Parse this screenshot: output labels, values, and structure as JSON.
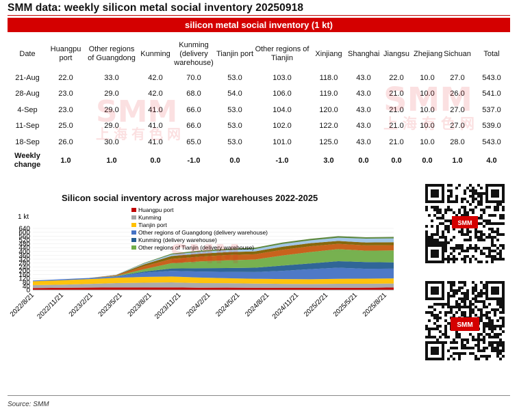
{
  "header": {
    "title": "SMM data:  weekly silicon metal social inventory 20250918"
  },
  "table": {
    "banner": "silicon metal social inventory (1 kt)",
    "columns": [
      "Date",
      "Huangpu port",
      "Other regions of Guangdong",
      "Kunming",
      "Kunming (delivery warehouse)",
      "Tianjin port",
      "Other regions of Tianjin",
      "Xinjiang",
      "Shanghai",
      "Jiangsu",
      "Zhejiang",
      "Sichuan",
      "Total"
    ],
    "rows": [
      [
        "21-Aug",
        "22.0",
        "33.0",
        "42.0",
        "70.0",
        "53.0",
        "103.0",
        "118.0",
        "43.0",
        "22.0",
        "10.0",
        "27.0",
        "543.0"
      ],
      [
        "28-Aug",
        "23.0",
        "29.0",
        "42.0",
        "68.0",
        "54.0",
        "106.0",
        "119.0",
        "43.0",
        "21.0",
        "10.0",
        "26.0",
        "541.0"
      ],
      [
        "4-Sep",
        "23.0",
        "29.0",
        "41.0",
        "66.0",
        "53.0",
        "104.0",
        "120.0",
        "43.0",
        "21.0",
        "10.0",
        "27.0",
        "537.0"
      ],
      [
        "11-Sep",
        "25.0",
        "29.0",
        "41.0",
        "66.0",
        "53.0",
        "102.0",
        "122.0",
        "43.0",
        "21.0",
        "10.0",
        "27.0",
        "539.0"
      ],
      [
        "18-Sep",
        "26.0",
        "30.0",
        "41.0",
        "65.0",
        "53.0",
        "101.0",
        "125.0",
        "43.0",
        "21.0",
        "10.0",
        "28.0",
        "543.0"
      ]
    ],
    "weekly_change": [
      "Weekly change",
      "1.0",
      "1.0",
      "0.0",
      "-1.0",
      "0.0",
      "-1.0",
      "3.0",
      "0.0",
      "0.0",
      "0.0",
      "1.0",
      "4.0"
    ]
  },
  "watermark": {
    "logo": "SMM",
    "cn": "上海有色网"
  },
  "chart_data": {
    "type": "area",
    "stacked": true,
    "title": "Silicon social inventory across major warehouses 2022-2025",
    "ylabel": "1 kt",
    "ylim": [
      0,
      640
    ],
    "yticks": [
      0,
      40,
      80,
      120,
      160,
      200,
      240,
      280,
      320,
      360,
      400,
      440,
      480,
      520,
      560,
      600,
      640
    ],
    "x_tick_labels": [
      "2022/8/21",
      "2022/11/21",
      "2023/2/21",
      "2023/5/21",
      "2023/8/21",
      "2023/11/21",
      "2024/2/21",
      "2024/5/21",
      "2024/8/21",
      "2024/11/21",
      "2025/2/21",
      "2025/5/21",
      "2025/8/21"
    ],
    "x": [
      "2022/8/21",
      "2022/11/21",
      "2023/2/21",
      "2023/5/21",
      "2023/8/21",
      "2023/11/21",
      "2024/2/21",
      "2024/5/21",
      "2024/8/21",
      "2024/11/21",
      "2025/2/21",
      "2025/5/21",
      "2025/8/21",
      "2025/9/18"
    ],
    "legend_position": "top-left",
    "series": [
      {
        "name": "Huangpu port",
        "color": "#c00000",
        "values": [
          20,
          22,
          24,
          26,
          25,
          26,
          23,
          24,
          22,
          21,
          21,
          22,
          22,
          26
        ]
      },
      {
        "name": "Kunming",
        "color": "#a6a6a6",
        "values": [
          30,
          32,
          38,
          45,
          50,
          52,
          48,
          46,
          44,
          42,
          40,
          42,
          42,
          41
        ]
      },
      {
        "name": "Tianjin port",
        "color": "#ffc000",
        "values": [
          40,
          46,
          50,
          55,
          60,
          62,
          58,
          52,
          50,
          50,
          50,
          52,
          53,
          53
        ]
      },
      {
        "name": "Other regions of Guangdong (delivery warehouse)",
        "color": "#4472c4",
        "values": [
          8,
          10,
          12,
          14,
          45,
          58,
          62,
          66,
          70,
          85,
          105,
          115,
          103,
          101
        ]
      },
      {
        "name": "Kunming (delivery warehouse)",
        "color": "#255e91",
        "values": [
          0,
          0,
          0,
          2,
          10,
          25,
          35,
          40,
          45,
          55,
          60,
          68,
          70,
          65
        ]
      },
      {
        "name": "Other regions of Tianjin (delivery warehouse)",
        "color": "#70ad47",
        "values": [
          0,
          0,
          0,
          4,
          25,
          55,
          70,
          80,
          85,
          105,
          118,
          125,
          118,
          125
        ]
      },
      {
        "name": "",
        "color": "#c55a11",
        "values": [
          0,
          0,
          0,
          6,
          30,
          45,
          50,
          55,
          55,
          60,
          60,
          55,
          55,
          55
        ]
      },
      {
        "name": "",
        "color": "#7f6000",
        "values": [
          0,
          0,
          0,
          4,
          20,
          30,
          30,
          30,
          30,
          32,
          32,
          30,
          30,
          30
        ]
      },
      {
        "name": "",
        "color": "#9dc3e6",
        "values": [
          0,
          0,
          0,
          2,
          10,
          15,
          20,
          22,
          24,
          28,
          30,
          34,
          40,
          40
        ]
      },
      {
        "name": "",
        "color": "#548235",
        "values": [
          0,
          0,
          0,
          0,
          5,
          10,
          12,
          12,
          14,
          15,
          16,
          16,
          15,
          15
        ]
      }
    ]
  },
  "source": "Source:  SMM"
}
